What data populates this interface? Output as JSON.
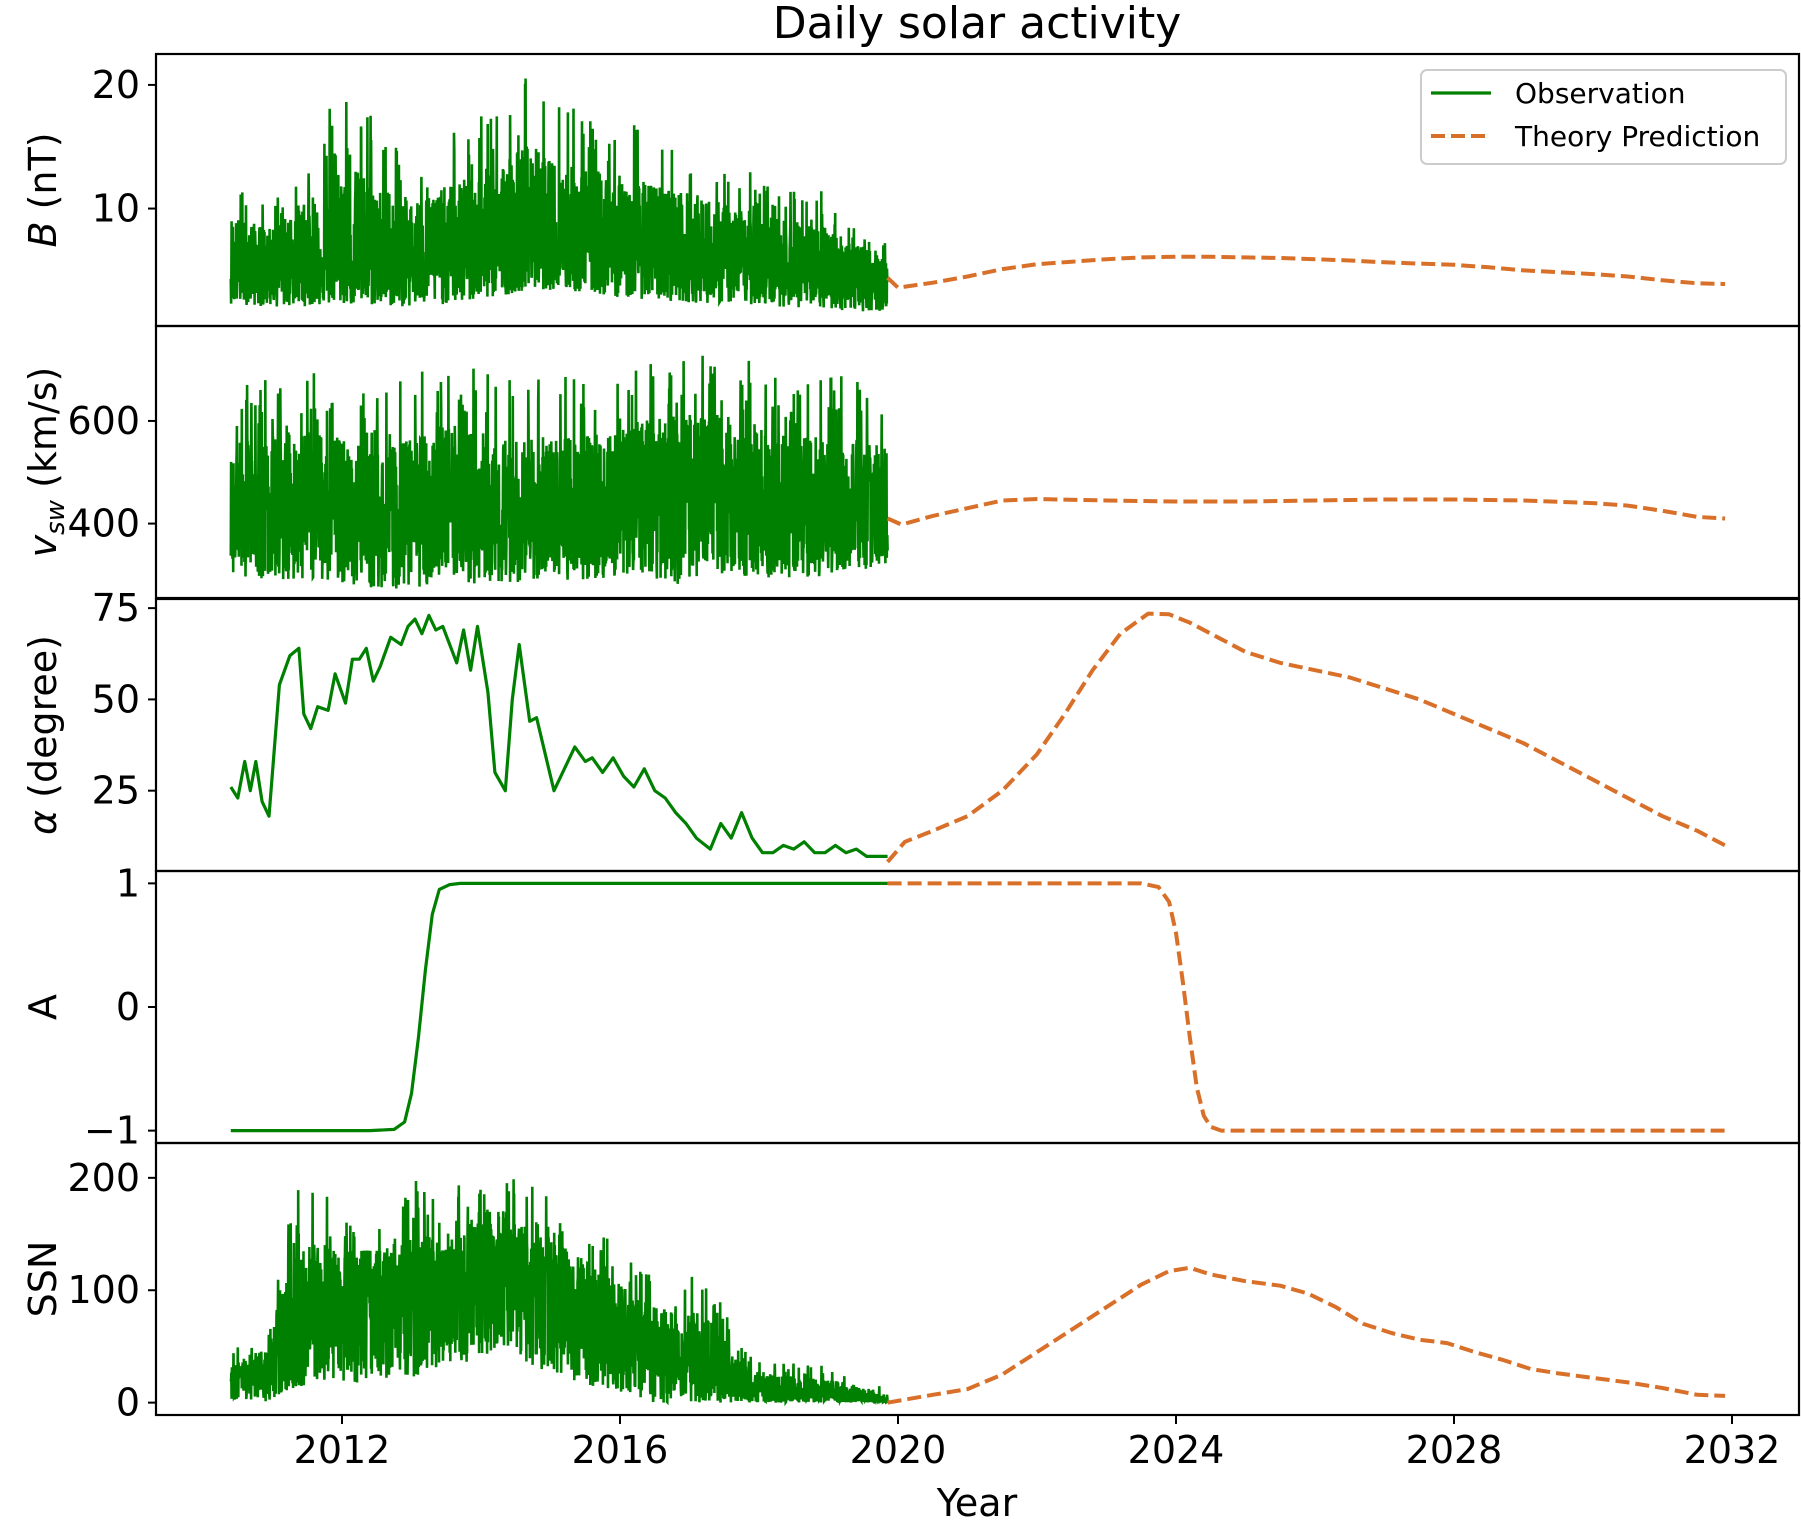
{
  "chart_data": {
    "type": "line",
    "title": "Daily solar activity",
    "xlabel": "Year",
    "xlim": [
      2009.7,
      2033.0
    ],
    "xticks": [
      2012,
      2016,
      2020,
      2024,
      2028,
      2032
    ],
    "xtick_labels": [
      "2012",
      "2016",
      "2020",
      "2024",
      "2028",
      "2032"
    ],
    "legend": {
      "position": "upper right (top panel)",
      "entries": [
        {
          "label": "Observation",
          "color": "#008000",
          "style": "solid"
        },
        {
          "label": "Theory Prediction",
          "color": "#d8702a",
          "style": "dashed"
        }
      ]
    },
    "grid": false,
    "panels": [
      {
        "id": "B",
        "ylabel": "B (nT)",
        "ylabel_italic_part": "B",
        "ylabel_rest": " (nT)",
        "ylim": [
          0.5,
          22.5
        ],
        "yticks": [
          10,
          20
        ],
        "ytick_labels": [
          "10",
          "20"
        ],
        "series": [
          {
            "name": "Observation",
            "kind": "daily-noisy",
            "x": [
              2010.4,
              2011.0,
              2012.0,
              2013.0,
              2014.0,
              2014.7,
              2015.0,
              2016.0,
              2017.0,
              2018.0,
              2019.0,
              2019.85
            ],
            "mean": [
              5.2,
              5.6,
              6.0,
              6.0,
              6.8,
              7.5,
              7.6,
              6.8,
              6.2,
              5.4,
              4.8,
              4.4
            ],
            "low": [
              2.3,
              2.0,
              2.2,
              2.0,
              2.5,
              3.5,
              3.4,
              2.8,
              2.4,
              2.2,
              1.8,
              1.6
            ],
            "high": [
              13.0,
              10.5,
              20.2,
              14.5,
              18.0,
              22.0,
              19.0,
              17.5,
              15.5,
              13.0,
              11.5,
              7.0
            ]
          },
          {
            "name": "Theory Prediction",
            "x": [
              2019.85,
              2020.0,
              2020.5,
              2021.0,
              2021.5,
              2022.0,
              2022.5,
              2023.0,
              2023.5,
              2024.0,
              2024.5,
              2025.0,
              2025.5,
              2026.0,
              2026.5,
              2027.0,
              2027.5,
              2028.0,
              2028.5,
              2029.0,
              2029.5,
              2030.0,
              2030.5,
              2031.0,
              2031.5,
              2031.9
            ],
            "y": [
              4.4,
              3.6,
              4.0,
              4.5,
              5.1,
              5.5,
              5.7,
              5.9,
              6.05,
              6.1,
              6.1,
              6.05,
              6.0,
              5.9,
              5.8,
              5.65,
              5.55,
              5.45,
              5.25,
              5.0,
              4.85,
              4.7,
              4.5,
              4.2,
              3.95,
              3.9
            ]
          }
        ]
      },
      {
        "id": "vsw",
        "ylabel": "v_sw (km/s)",
        "ylabel_italic_part": "v",
        "ylabel_sub": "sw",
        "ylabel_rest": " (km/s)",
        "ylim": [
          255,
          785
        ],
        "yticks": [
          400,
          600
        ],
        "ytick_labels": [
          "400",
          "600"
        ],
        "series": [
          {
            "name": "Observation",
            "kind": "daily-noisy",
            "x": [
              2010.4,
              2011.0,
              2011.8,
              2012.5,
              2013.5,
              2014.5,
              2015.5,
              2016.3,
              2016.9,
              2017.5,
              2018.5,
              2019.3,
              2019.85
            ],
            "mean": [
              420,
              440,
              430,
              400,
              420,
              400,
              430,
              470,
              480,
              460,
              430,
              420,
              410
            ],
            "low": [
              300,
              290,
              290,
              270,
              280,
              285,
              290,
              300,
              280,
              300,
              290,
              300,
              310
            ],
            "high": [
              660,
              690,
              700,
              650,
              740,
              700,
              690,
              710,
              720,
              740,
              680,
              700,
              660
            ]
          },
          {
            "name": "Theory Prediction",
            "x": [
              2019.85,
              2020.05,
              2020.5,
              2021.0,
              2021.5,
              2022.0,
              2023.0,
              2024.0,
              2025.0,
              2026.0,
              2027.0,
              2028.0,
              2029.0,
              2030.0,
              2030.5,
              2031.0,
              2031.5,
              2031.9
            ],
            "y": [
              410,
              398,
              415,
              430,
              445,
              448,
              445,
              443,
              443,
              445,
              447,
              447,
              445,
              440,
              435,
              425,
              413,
              410
            ]
          }
        ]
      },
      {
        "id": "alpha",
        "ylabel": "α (degree)",
        "ylabel_italic_part": "α",
        "ylabel_rest": " (degree)",
        "ylim": [
          3,
          77.5
        ],
        "yticks": [
          25,
          50,
          75
        ],
        "ytick_labels": [
          "25",
          "50",
          "75"
        ],
        "series": [
          {
            "name": "Observation",
            "x": [
              2010.4,
              2010.5,
              2010.6,
              2010.68,
              2010.76,
              2010.85,
              2010.95,
              2011.1,
              2011.25,
              2011.38,
              2011.45,
              2011.55,
              2011.65,
              2011.8,
              2011.9,
              2012.05,
              2012.15,
              2012.25,
              2012.35,
              2012.45,
              2012.55,
              2012.7,
              2012.85,
              2012.95,
              2013.05,
              2013.15,
              2013.25,
              2013.35,
              2013.45,
              2013.55,
              2013.65,
              2013.75,
              2013.85,
              2013.95,
              2014.1,
              2014.2,
              2014.35,
              2014.45,
              2014.55,
              2014.7,
              2014.8,
              2014.95,
              2015.05,
              2015.2,
              2015.35,
              2015.5,
              2015.6,
              2015.75,
              2015.9,
              2016.05,
              2016.2,
              2016.35,
              2016.5,
              2016.65,
              2016.8,
              2016.95,
              2017.1,
              2017.3,
              2017.45,
              2017.6,
              2017.75,
              2017.9,
              2018.05,
              2018.2,
              2018.35,
              2018.5,
              2018.65,
              2018.8,
              2018.95,
              2019.1,
              2019.25,
              2019.4,
              2019.55,
              2019.7,
              2019.85
            ],
            "y": [
              26,
              23,
              33,
              25,
              33,
              22,
              18,
              54,
              62,
              64,
              46,
              42,
              48,
              47,
              57,
              49,
              61,
              61,
              64,
              55,
              59,
              67,
              65,
              70,
              72,
              68,
              73,
              69,
              70,
              65,
              60,
              69,
              58,
              70,
              52,
              30,
              25,
              50,
              65,
              44,
              45,
              33,
              25,
              31,
              37,
              33,
              34,
              30,
              34,
              29,
              26,
              31,
              25,
              23,
              19,
              16,
              12,
              9,
              16,
              12,
              19,
              12,
              8,
              8,
              10,
              9,
              11,
              8,
              8,
              10,
              8,
              9,
              7,
              7,
              7
            ]
          },
          {
            "name": "Theory Prediction",
            "x": [
              2019.85,
              2020.1,
              2020.5,
              2021.0,
              2021.5,
              2022.0,
              2022.4,
              2022.8,
              2023.2,
              2023.6,
              2023.9,
              2024.2,
              2024.6,
              2025.0,
              2025.5,
              2026.0,
              2026.5,
              2027.0,
              2027.5,
              2028.0,
              2028.5,
              2029.0,
              2029.5,
              2030.0,
              2030.5,
              2031.0,
              2031.5,
              2031.9
            ],
            "y": [
              5.5,
              11,
              14,
              18,
              25,
              35,
              46,
              58,
              68,
              73.5,
              73.3,
              71,
              67,
              63,
              60,
              58,
              56,
              53,
              50,
              46,
              42,
              38,
              33,
              28,
              23,
              18,
              14,
              10
            ]
          }
        ]
      },
      {
        "id": "A",
        "ylabel": "A",
        "ylim": [
          -1.1,
          1.1
        ],
        "yticks": [
          -1,
          0,
          1
        ],
        "ytick_labels": [
          "−1",
          "0",
          "1"
        ],
        "series": [
          {
            "name": "Observation",
            "x": [
              2010.4,
              2012.4,
              2012.75,
              2012.9,
              2013.0,
              2013.1,
              2013.2,
              2013.3,
              2013.4,
              2013.55,
              2013.7,
              2014.0,
              2019.85
            ],
            "y": [
              -1,
              -1,
              -0.99,
              -0.93,
              -0.7,
              -0.25,
              0.3,
              0.75,
              0.95,
              0.99,
              1,
              1,
              1
            ]
          },
          {
            "name": "Theory Prediction",
            "x": [
              2019.85,
              2023.5,
              2023.75,
              2023.9,
              2024.0,
              2024.1,
              2024.2,
              2024.3,
              2024.4,
              2024.5,
              2024.65,
              2025.0,
              2031.9
            ],
            "y": [
              1,
              1,
              0.97,
              0.85,
              0.6,
              0.2,
              -0.25,
              -0.65,
              -0.88,
              -0.97,
              -1,
              -1,
              -1
            ]
          }
        ]
      },
      {
        "id": "SSN",
        "ylabel": "SSN",
        "ylim": [
          -11,
          231
        ],
        "yticks": [
          0,
          100,
          200
        ],
        "ytick_labels": [
          "0",
          "100",
          "200"
        ],
        "series": [
          {
            "name": "Observation",
            "kind": "daily-noisy",
            "x": [
              2010.4,
              2010.9,
              2011.3,
              2011.6,
              2012.0,
              2012.5,
              2013.0,
              2013.5,
              2014.0,
              2014.3,
              2014.8,
              2015.3,
              2015.8,
              2016.3,
              2016.8,
              2017.3,
              2017.7,
              2018.2,
              2018.7,
              2019.2,
              2019.85
            ],
            "mean": [
              15,
              30,
              60,
              85,
              90,
              95,
              90,
              95,
              120,
              125,
              110,
              90,
              75,
              55,
              40,
              30,
              15,
              8,
              6,
              5,
              1
            ],
            "low": [
              0,
              0,
              10,
              20,
              15,
              20,
              20,
              30,
              40,
              50,
              30,
              20,
              10,
              0,
              0,
              0,
              0,
              0,
              0,
              0,
              0
            ],
            "high": [
              45,
              70,
              190,
              195,
              175,
              170,
              210,
              180,
              220,
              210,
              190,
              170,
              150,
              120,
              115,
              120,
              50,
              40,
              35,
              30,
              15
            ]
          },
          {
            "name": "Theory Prediction",
            "x": [
              2019.85,
              2020.5,
              2021.0,
              2021.5,
              2022.0,
              2022.5,
              2023.0,
              2023.5,
              2023.9,
              2024.2,
              2024.5,
              2025.0,
              2025.5,
              2025.9,
              2026.3,
              2026.7,
              2027.1,
              2027.5,
              2027.9,
              2028.3,
              2028.7,
              2029.1,
              2029.5,
              2030.0,
              2030.5,
              2031.0,
              2031.5,
              2031.9
            ],
            "y": [
              0,
              7,
              12,
              25,
              45,
              65,
              85,
              105,
              117,
              120,
              114,
              108,
              104,
              97,
              85,
              70,
              62,
              56,
              53,
              45,
              38,
              30,
              26,
              22,
              18,
              13,
              7,
              6
            ]
          }
        ]
      }
    ]
  }
}
